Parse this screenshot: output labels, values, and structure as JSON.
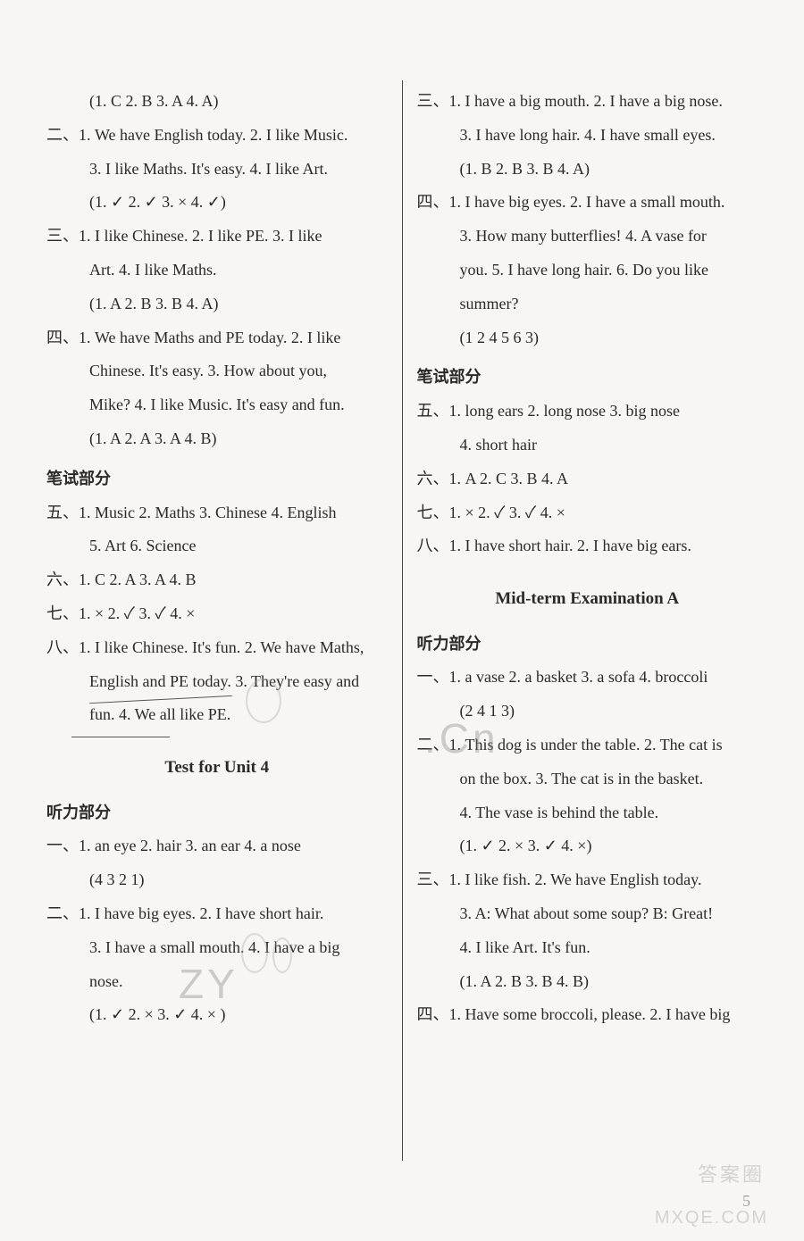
{
  "left": {
    "l1": "(1. C  2. B  3. A  4. A)",
    "l2a": "二、1. We have English today.   2. I like Music.",
    "l2b": "3. I like Maths.  It's easy.   4. I like Art.",
    "l2c": "(1. ✓   2. ✓   3. ×   4. ✓)",
    "l3a": "三、1. I like Chinese.    2. I like PE.    3. I like",
    "l3b": "Art.    4. I like Maths.",
    "l3c": "(1. A  2. B  3. B  4. A)",
    "l4a": "四、1. We have Maths and PE today.    2. I like",
    "l4b": "Chinese.  It's easy.     3. How about you,",
    "l4c": "Mike?   4. I like Music.  It's easy and fun.",
    "l4d": "(1. A  2. A  3. A  4. B)",
    "sec1": "笔试部分",
    "l5a": "五、1. Music  2. Maths  3. Chinese  4. English",
    "l5b": "5. Art  6. Science",
    "l6": "六、1. C  2. A  3. A  4. B",
    "l7": "七、1. ×  2. ✓  3. ✓  4. ×",
    "l8a": "八、1. I like Chinese.  It's fun.   2. We have Maths,",
    "l8b": "English and PE today.   3. They're easy and",
    "l8c": "fun.   4. We all like PE.",
    "unit": "Test for Unit 4",
    "sec2": "听力部分",
    "l9a": "一、1. an eye  2. hair  3. an ear  4. a nose",
    "l9b": "(4 3 2 1)",
    "l10a": "二、1. I have big eyes.    2. I have short hair.",
    "l10b": "3. I have a small mouth.    4. I have a big",
    "l10c": "nose.",
    "l10d": "(1. ✓  2. ×  3. ✓  4. × )"
  },
  "right": {
    "r1a": "三、1. I have a big mouth.    2. I have a big nose.",
    "r1b": "3. I have long hair.    4. I have small eyes.",
    "r1c": "(1. B  2. B  3. B  4. A)",
    "r2a": "四、1. I have big eyes.    2. I have a small mouth.",
    "r2b": "3. How many butterflies!     4. A vase for",
    "r2c": "you.    5. I have long hair.    6. Do you like",
    "r2d": "summer?",
    "r2e": "(1 2 4 5 6 3)",
    "sec1": "笔试部分",
    "r3a": "五、1. long ears  2. long nose  3. big nose",
    "r3b": "4. short hair",
    "r4": "六、1. A  2. C  3. B  4. A",
    "r5": "七、1. ×   2. ✓   3. ✓   4. ×",
    "r6": "八、1. I have short hair.   2. I have big ears.",
    "unit": "Mid-term Examination A",
    "sec2": "听力部分",
    "r7a": "一、1. a vase  2. a basket  3. a sofa  4. broccoli",
    "r7b": "(2 4 1 3)",
    "r8a": "二、1. This dog is under the table.    2. The cat is",
    "r8b": "on the box.    3. The cat is in the basket.",
    "r8c": "4. The vase is behind the table.",
    "r8d": "(1. ✓  2. ×  3. ✓  4. ×)",
    "r9a": "三、1. I like fish.    2. We have English today.",
    "r9b": "3. A: What about some soup?    B: Great!",
    "r9c": "4. I like Art.  It's fun.",
    "r9d": "(1. A  2. B  3. B  4. B)",
    "r10": "四、1. Have some broccoli, please.    2. I have big"
  },
  "footer": {
    "pagenum": "5",
    "wm1": "答案圈",
    "wm2": "MXQE.COM"
  },
  "watermarks": {
    "zy": "ZY",
    "cn": ".Cn"
  }
}
